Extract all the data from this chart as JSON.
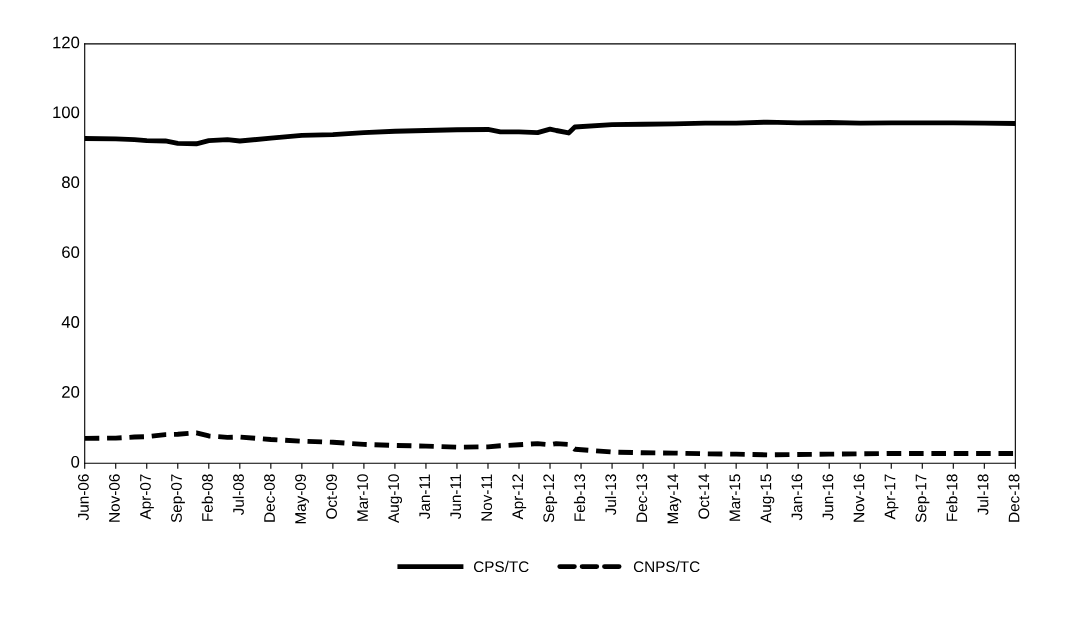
{
  "chart_data": {
    "type": "line",
    "xlim": [
      "2006-06",
      "2018-12"
    ],
    "xticks": [
      {
        "value": "2006-06",
        "label": "Jun-06"
      },
      {
        "value": "2006-11",
        "label": "Nov-06"
      },
      {
        "value": "2007-04",
        "label": "Apr-07"
      },
      {
        "value": "2007-09",
        "label": "Sep-07"
      },
      {
        "value": "2008-02",
        "label": "Feb-08"
      },
      {
        "value": "2008-07",
        "label": "Jul-08"
      },
      {
        "value": "2008-12",
        "label": "Dec-08"
      },
      {
        "value": "2009-05",
        "label": "May-09"
      },
      {
        "value": "2009-10",
        "label": "Oct-09"
      },
      {
        "value": "2010-03",
        "label": "Mar-10"
      },
      {
        "value": "2010-08",
        "label": "Aug-10"
      },
      {
        "value": "2011-01",
        "label": "Jan-11"
      },
      {
        "value": "2011-06",
        "label": "Jun-11"
      },
      {
        "value": "2011-11",
        "label": "Nov-11"
      },
      {
        "value": "2012-04",
        "label": "Apr-12"
      },
      {
        "value": "2012-09",
        "label": "Sep-12"
      },
      {
        "value": "2013-02",
        "label": "Feb-13"
      },
      {
        "value": "2013-07",
        "label": "Jul-13"
      },
      {
        "value": "2013-12",
        "label": "Dec-13"
      },
      {
        "value": "2014-05",
        "label": "May-14"
      },
      {
        "value": "2014-10",
        "label": "Oct-14"
      },
      {
        "value": "2015-03",
        "label": "Mar-15"
      },
      {
        "value": "2015-08",
        "label": "Aug-15"
      },
      {
        "value": "2016-01",
        "label": "Jan-16"
      },
      {
        "value": "2016-06",
        "label": "Jun-16"
      },
      {
        "value": "2016-11",
        "label": "Nov-16"
      },
      {
        "value": "2017-04",
        "label": "Apr-17"
      },
      {
        "value": "2017-09",
        "label": "Sep-17"
      },
      {
        "value": "2018-02",
        "label": "Feb-18"
      },
      {
        "value": "2018-07",
        "label": "Jul-18"
      },
      {
        "value": "2018-12",
        "label": "Dec-18"
      }
    ],
    "ylim": [
      0,
      120
    ],
    "yticks": [
      0,
      20,
      40,
      60,
      80,
      100,
      120
    ],
    "grid": false,
    "legend": "bottom",
    "marker": "none",
    "x": [
      "2006-06",
      "2006-11",
      "2007-02",
      "2007-04",
      "2007-07",
      "2007-09",
      "2007-12",
      "2008-02",
      "2008-05",
      "2008-07",
      "2008-12",
      "2009-05",
      "2009-10",
      "2010-03",
      "2010-08",
      "2011-01",
      "2011-06",
      "2011-11",
      "2012-01",
      "2012-04",
      "2012-07",
      "2012-09",
      "2012-10",
      "2012-12",
      "2013-01",
      "2013-07",
      "2013-12",
      "2014-05",
      "2014-10",
      "2015-03",
      "2015-08",
      "2016-01",
      "2016-06",
      "2016-11",
      "2017-04",
      "2017-09",
      "2018-02",
      "2018-07",
      "2018-12"
    ],
    "series": [
      {
        "name": "CPS/TC",
        "color": "#000000",
        "line_style": "solid",
        "values": [
          92.9,
          92.8,
          92.6,
          92.3,
          92.2,
          91.5,
          91.4,
          92.3,
          92.6,
          92.2,
          93.0,
          93.8,
          94.0,
          94.6,
          95.0,
          95.2,
          95.4,
          95.5,
          94.8,
          94.8,
          94.6,
          95.6,
          95.2,
          94.5,
          96.2,
          96.9,
          97.0,
          97.1,
          97.3,
          97.3,
          97.6,
          97.4,
          97.5,
          97.3,
          97.4,
          97.4,
          97.4,
          97.3,
          97.2
        ]
      },
      {
        "name": "CNPS/TC",
        "color": "#000000",
        "line_style": "dashed",
        "values": [
          7.1,
          7.2,
          7.5,
          7.6,
          8.2,
          8.3,
          8.7,
          7.8,
          7.4,
          7.5,
          6.8,
          6.3,
          6.0,
          5.4,
          5.1,
          4.9,
          4.6,
          4.7,
          5.0,
          5.3,
          5.6,
          5.3,
          5.6,
          5.4,
          4.0,
          3.2,
          3.0,
          2.9,
          2.7,
          2.6,
          2.4,
          2.5,
          2.6,
          2.7,
          2.8,
          2.8,
          2.8,
          2.8,
          2.8
        ]
      }
    ]
  }
}
